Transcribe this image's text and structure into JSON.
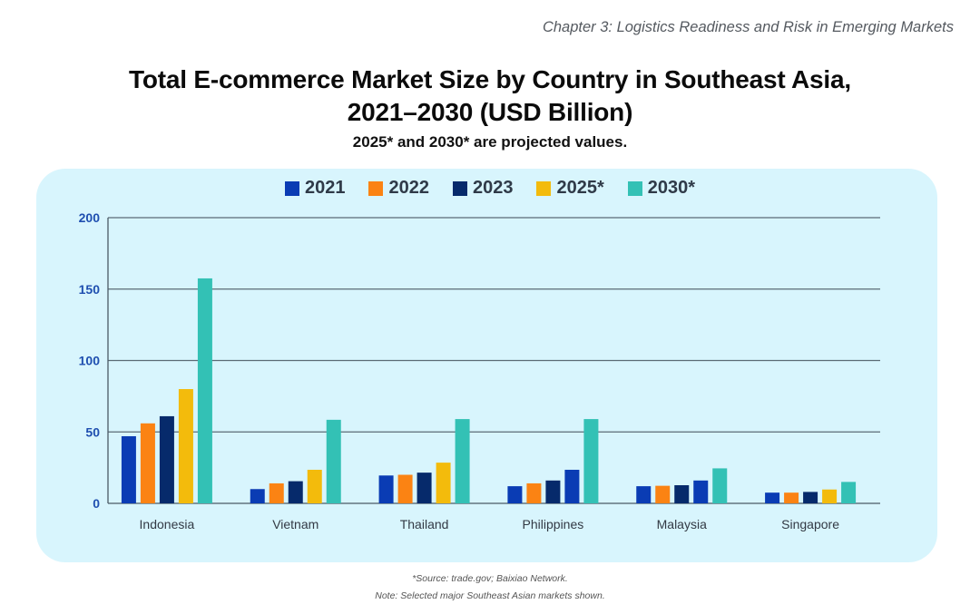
{
  "header": {
    "chapter": "Chapter 3: Logistics Readiness and Risk in Emerging Markets"
  },
  "footer": {
    "source": "*Source: trade.gov; Baixiao Network.",
    "note": "Note: Selected major Southeast Asian markets shown."
  },
  "chart_data": {
    "type": "bar",
    "title_line1": "Total E-commerce Market Size by Country in Southeast Asia,",
    "title_line2": "2021–2030 (USD Billion)",
    "subtitle": "2025* and 2030* are projected values.",
    "xlabel": "",
    "ylabel": "",
    "ylim": [
      0,
      200
    ],
    "yticks": [
      0,
      50,
      100,
      150,
      200
    ],
    "grid": true,
    "legend_position": "top-center",
    "categories": [
      "Indonesia",
      "Vietnam",
      "Thailand",
      "Philippines",
      "Malaysia",
      "Singapore"
    ],
    "series": [
      {
        "name": "2021",
        "color": "#0a3cb4",
        "values": [
          47,
          10,
          19.5,
          12,
          12,
          7.5
        ]
      },
      {
        "name": "2022",
        "color": "#fb8313",
        "values": [
          56,
          14,
          20,
          14,
          12.3,
          7.5
        ]
      },
      {
        "name": "2023",
        "color": "#062a6b",
        "values": [
          61,
          15.5,
          21.5,
          16,
          12.7,
          8
        ]
      },
      {
        "name": "2025*",
        "color": "#f3bb0c",
        "values": [
          80,
          23.5,
          28.5,
          23.5,
          16,
          9.7
        ],
        "point_colors": [
          "#f3bb0c",
          "#f3bb0c",
          "#f3bb0c",
          "#0a3cb4",
          "#0a3cb4",
          "#f3bb0c"
        ]
      },
      {
        "name": "2030*",
        "color": "#33c1b5",
        "values": [
          157.5,
          58.5,
          59,
          59,
          24.5,
          15
        ]
      }
    ]
  }
}
